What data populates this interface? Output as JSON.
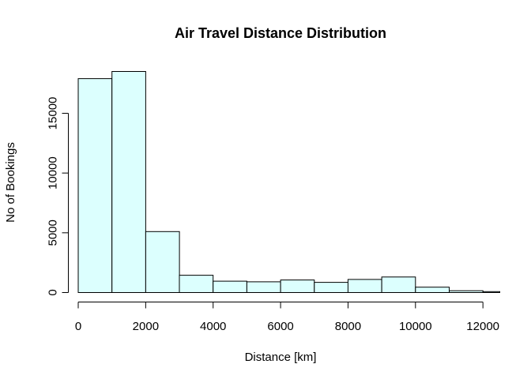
{
  "chart_data": {
    "type": "bar",
    "subtype": "histogram",
    "title": "Air Travel Distance Distribution",
    "xlabel": "Distance [km]",
    "ylabel": "No of Bookings",
    "bin_edges": [
      0,
      1000,
      2000,
      3000,
      4000,
      5000,
      6000,
      7000,
      8000,
      9000,
      10000,
      11000,
      12000,
      12500
    ],
    "values": [
      17900,
      18500,
      5100,
      1450,
      950,
      900,
      1050,
      850,
      1100,
      1300,
      450,
      150,
      80
    ],
    "xlim": [
      0,
      12500
    ],
    "ylim": [
      0,
      18500
    ],
    "x_ticks": [
      0,
      2000,
      4000,
      6000,
      8000,
      10000,
      12000
    ],
    "y_ticks": [
      0,
      5000,
      10000,
      15000
    ],
    "bar_fill": "#dcfffe",
    "bar_stroke": "#000000",
    "grid": false,
    "legend": "none"
  }
}
